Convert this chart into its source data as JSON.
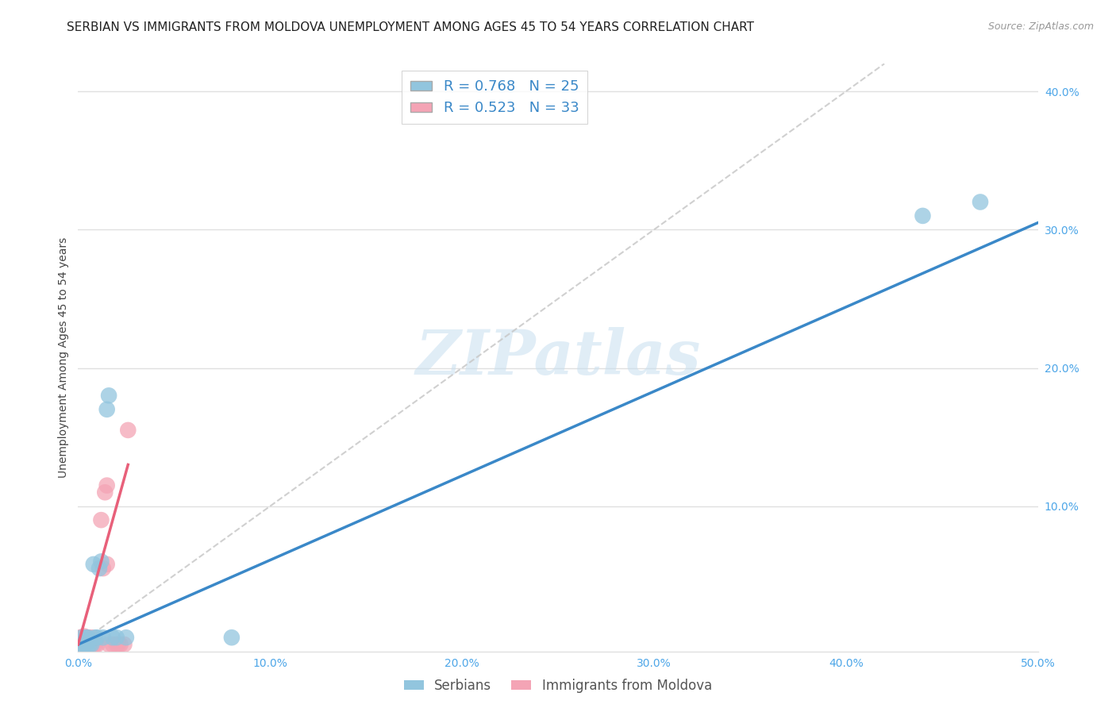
{
  "title": "SERBIAN VS IMMIGRANTS FROM MOLDOVA UNEMPLOYMENT AMONG AGES 45 TO 54 YEARS CORRELATION CHART",
  "source": "Source: ZipAtlas.com",
  "ylabel": "Unemployment Among Ages 45 to 54 years",
  "xlim": [
    0,
    0.5
  ],
  "ylim": [
    -0.005,
    0.42
  ],
  "serbian_color": "#92c5de",
  "moldova_color": "#f4a4b5",
  "serbian_line_color": "#3a88c8",
  "moldova_line_color": "#e8607a",
  "diagonal_color": "#c8c8c8",
  "R_serbian": 0.768,
  "N_serbian": 25,
  "R_moldova": 0.523,
  "N_moldova": 33,
  "legend_label_serbian": "Serbians",
  "legend_label_moldova": "Immigrants from Moldova",
  "serbian_x": [
    0.001,
    0.002,
    0.002,
    0.003,
    0.003,
    0.004,
    0.004,
    0.005,
    0.005,
    0.006,
    0.007,
    0.008,
    0.009,
    0.01,
    0.011,
    0.012,
    0.013,
    0.015,
    0.016,
    0.018,
    0.02,
    0.025,
    0.08,
    0.44,
    0.47
  ],
  "serbian_y": [
    0.0,
    0.0,
    0.005,
    0.0,
    0.002,
    0.0,
    0.005,
    0.005,
    0.0,
    0.0,
    0.0,
    0.058,
    0.005,
    0.005,
    0.055,
    0.06,
    0.005,
    0.17,
    0.18,
    0.005,
    0.005,
    0.005,
    0.005,
    0.31,
    0.32
  ],
  "moldova_x": [
    0.001,
    0.001,
    0.001,
    0.002,
    0.002,
    0.002,
    0.003,
    0.003,
    0.003,
    0.004,
    0.004,
    0.005,
    0.005,
    0.005,
    0.006,
    0.006,
    0.007,
    0.007,
    0.008,
    0.009,
    0.01,
    0.012,
    0.013,
    0.014,
    0.015,
    0.015,
    0.016,
    0.018,
    0.02,
    0.021,
    0.022,
    0.024,
    0.026
  ],
  "moldova_y": [
    0.0,
    0.002,
    0.005,
    0.0,
    0.003,
    0.005,
    0.0,
    0.003,
    0.006,
    0.0,
    0.005,
    0.0,
    0.002,
    0.005,
    0.0,
    0.003,
    0.002,
    0.005,
    0.0,
    0.0,
    0.0,
    0.09,
    0.055,
    0.11,
    0.115,
    0.058,
    0.0,
    0.0,
    0.0,
    0.0,
    0.0,
    0.0,
    0.155
  ],
  "serbian_line_x": [
    0.0,
    0.5
  ],
  "serbian_line_y": [
    0.0,
    0.305
  ],
  "moldova_line_x": [
    0.0,
    0.026
  ],
  "moldova_line_y": [
    0.0,
    0.13
  ],
  "watermark_text": "ZIPatlas",
  "background_color": "#ffffff",
  "grid_color": "#e0e0e0",
  "title_fontsize": 11,
  "axis_label_fontsize": 10,
  "tick_fontsize": 10,
  "legend_fontsize": 13,
  "source_fontsize": 9
}
